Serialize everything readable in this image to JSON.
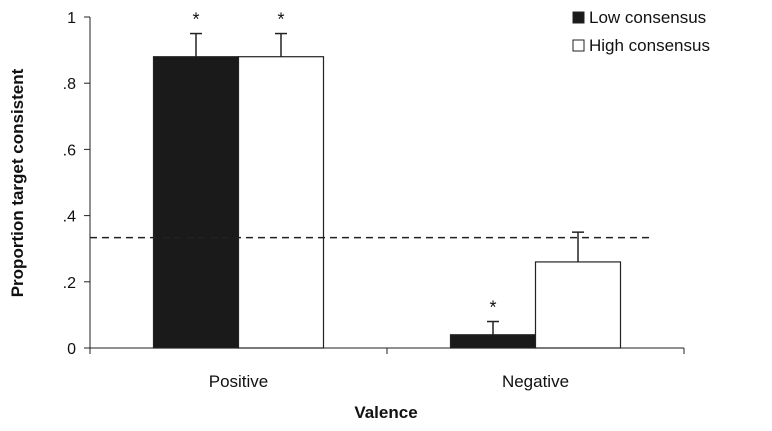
{
  "chart_data": {
    "type": "bar",
    "categories": [
      "Positive",
      "Negative"
    ],
    "series": [
      {
        "name": "Low consensus",
        "color": "#1a1a1a",
        "values": [
          0.88,
          0.04
        ],
        "error": [
          0.07,
          0.04
        ],
        "significant": [
          true,
          true
        ]
      },
      {
        "name": "High consensus",
        "color": "#ffffff",
        "values": [
          0.88,
          0.26
        ],
        "error": [
          0.07,
          0.09
        ],
        "significant": [
          true,
          false
        ]
      }
    ],
    "ylim": [
      0,
      1
    ],
    "yticks": [
      {
        "value": 0,
        "label": "0"
      },
      {
        "value": 0.2,
        "label": ".2"
      },
      {
        "value": 0.4,
        "label": ".4"
      },
      {
        "value": 0.6,
        "label": ".6"
      },
      {
        "value": 0.8,
        "label": ".8"
      },
      {
        "value": 1,
        "label": "1"
      }
    ],
    "ylabel": "Proportion target consistent",
    "xlabel": "Valence",
    "reference_line": 0.3333,
    "significance_marker": "*",
    "legend_position": "top-right",
    "grid": false
  }
}
